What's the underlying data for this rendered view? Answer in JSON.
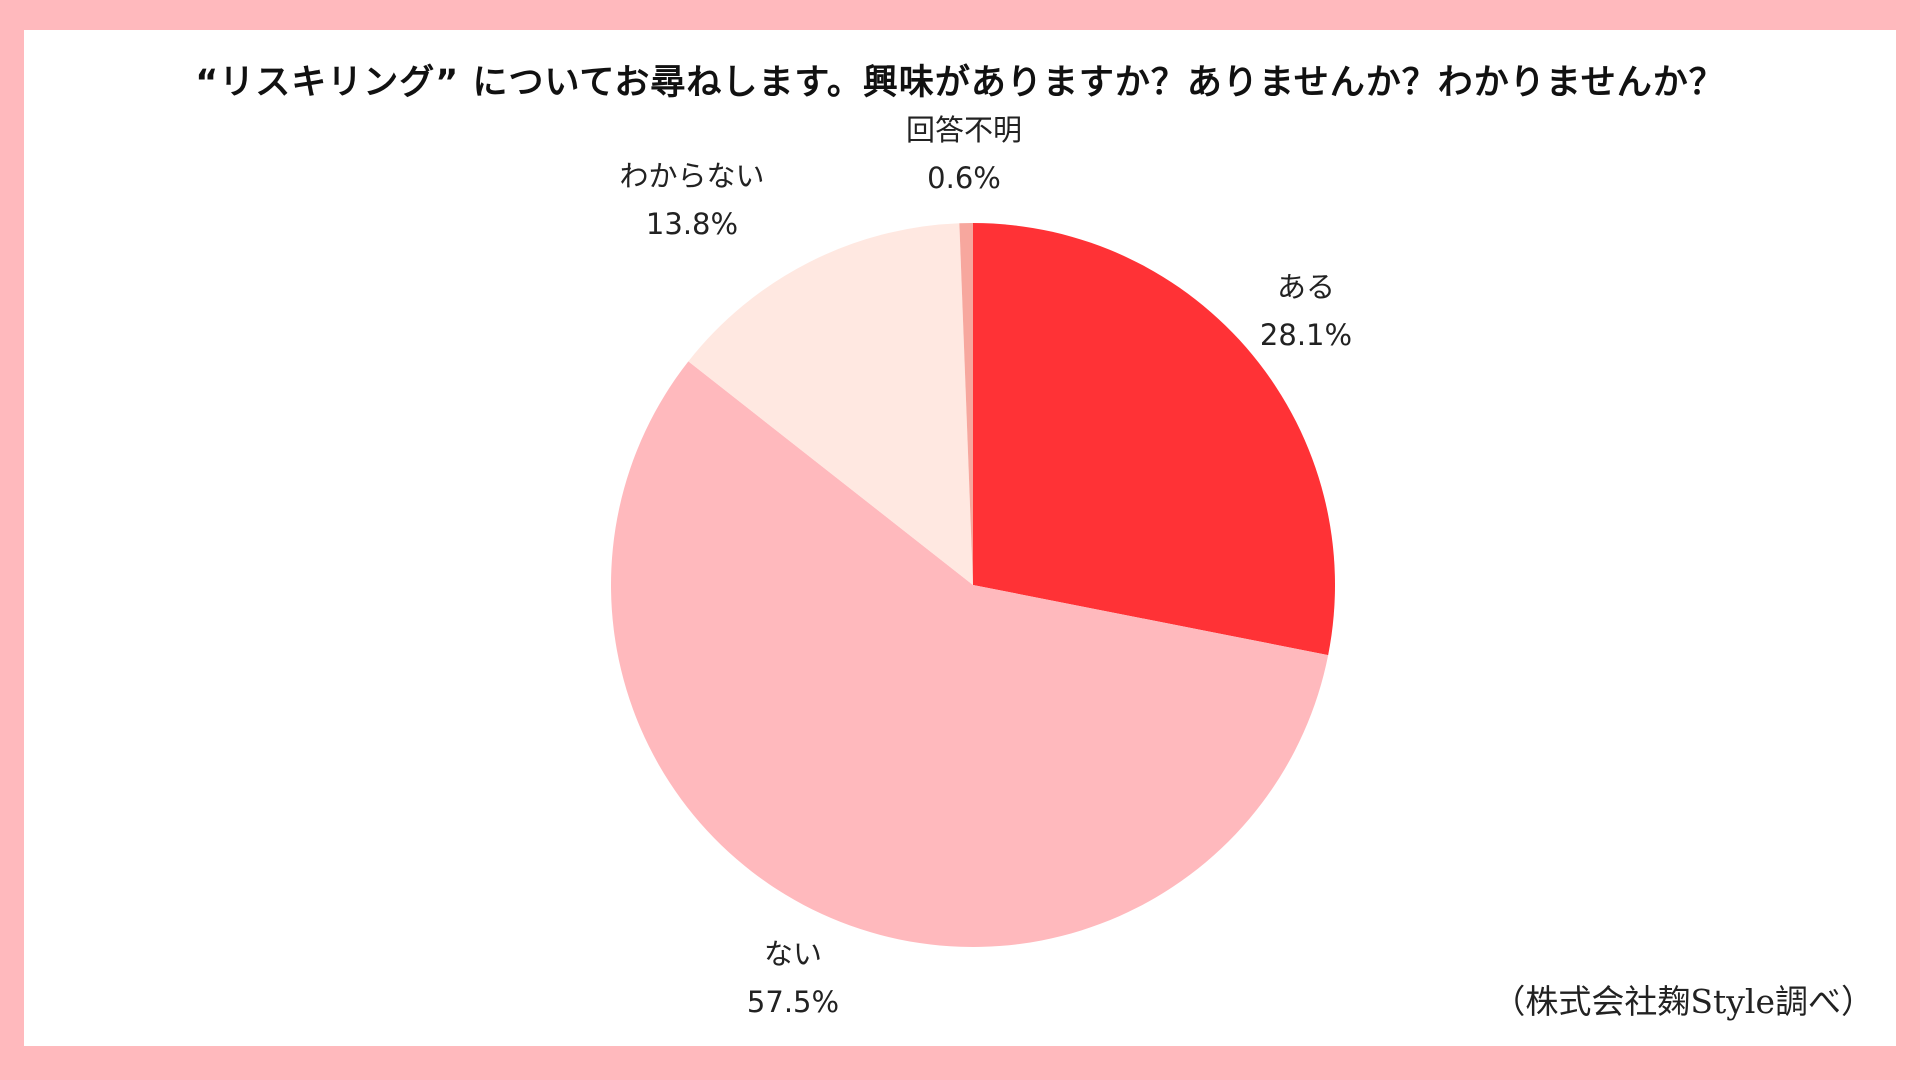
{
  "chart_data": {
    "type": "pie",
    "title": "“リスキリング” についてお尋ねします。興味がありますか？ありませんか？わかりませんか？",
    "slices": [
      {
        "label": "ある",
        "value": 28.1,
        "value_label": "28.1%",
        "color": "#FF3236"
      },
      {
        "label": "ない",
        "value": 57.5,
        "value_label": "57.5%",
        "color": "#FFB9BD"
      },
      {
        "label": "わからない",
        "value": 13.8,
        "value_label": "13.8%",
        "color": "#FFE8E1"
      },
      {
        "label": "回答不明",
        "value": 0.6,
        "value_label": "0.6%",
        "color": "#F7A79E"
      }
    ],
    "start": "12 o'clock",
    "direction": "clockwise",
    "legend": "none"
  },
  "credit": "（株式会社麹Style調べ）",
  "colors": {
    "background": "#FFB9BD",
    "panel": "#FFFFFF"
  }
}
